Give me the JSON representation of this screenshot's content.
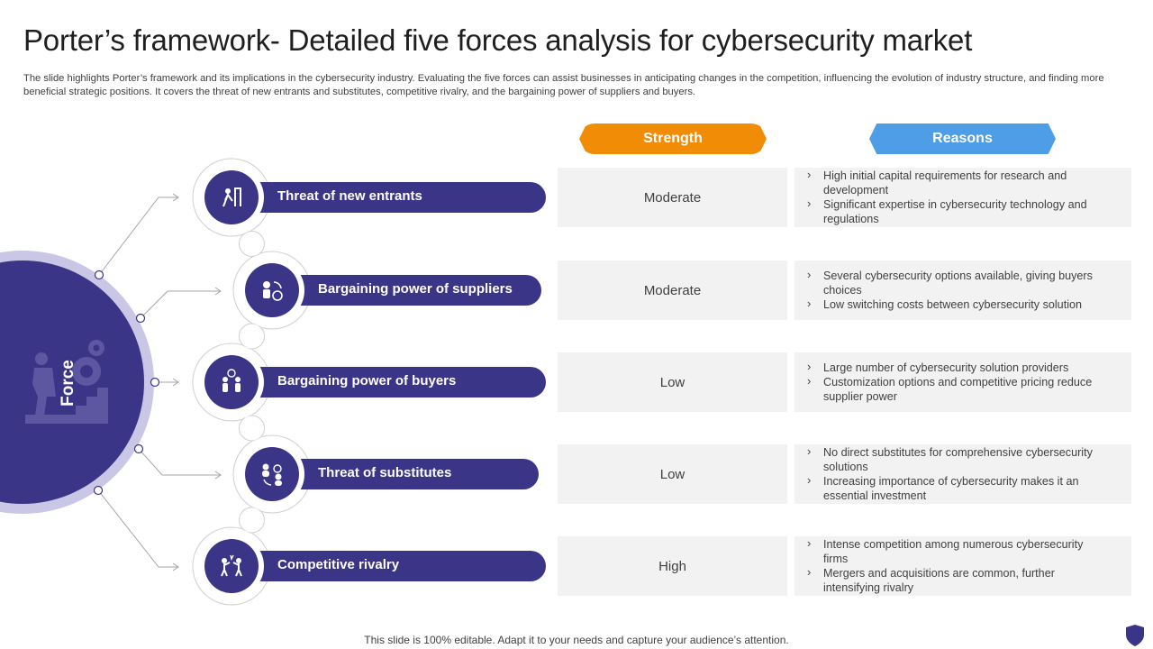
{
  "title": "Porter’s framework- Detailed five forces analysis for cybersecurity market",
  "subtitle": "The slide highlights Porter’s framework and its implications in the cybersecurity industry. Evaluating the five forces can assist businesses in anticipating changes in the competition, influencing the evolution of industry structure, and finding more beneficial strategic positions. It covers the threat of new entrants and substitutes, competitive rivalry, and the bargaining power of suppliers and buyers.",
  "headers": {
    "strength": "Strength",
    "reasons": "Reasons"
  },
  "force_label": "Force",
  "colors": {
    "navy": "#3b3587",
    "lavender": "#c9c6e6",
    "orange": "#f08c06",
    "blue": "#4d9ee6",
    "cell": "#f2f2f2"
  },
  "forces": [
    {
      "name": "Threat of new entrants",
      "icon": "person-climbing-stairs-icon",
      "strength": "Moderate",
      "reasons": [
        "High initial capital requirements for research and development",
        "Significant expertise in cybersecurity technology and regulations"
      ]
    },
    {
      "name": "Bargaining power of suppliers",
      "icon": "supplier-money-icon",
      "strength": "Moderate",
      "reasons": [
        "Several cybersecurity options available, giving buyers choices",
        "Low switching costs between cybersecurity solution"
      ]
    },
    {
      "name": "Bargaining power of buyers",
      "icon": "buyers-negotiation-icon",
      "strength": "Low",
      "reasons": [
        "Large number of cybersecurity solution providers",
        "Customization options and competitive pricing reduce supplier power"
      ]
    },
    {
      "name": "Threat of substitutes",
      "icon": "substitute-exchange-icon",
      "strength": "Low",
      "reasons": [
        "No direct substitutes for comprehensive  cybersecurity solutions",
        "Increasing importance of cybersecurity makes it an essential investment"
      ]
    },
    {
      "name": "Competitive rivalry",
      "icon": "rivalry-fight-icon",
      "strength": "High",
      "reasons": [
        "Intense competition among numerous cybersecurity firms",
        "Mergers and acquisitions are common, further intensifying rivalry"
      ]
    }
  ],
  "footer": "This slide is 100% editable. Adapt it to your needs and capture your audience’s attention.",
  "brand_icon": "shield-logo-icon"
}
